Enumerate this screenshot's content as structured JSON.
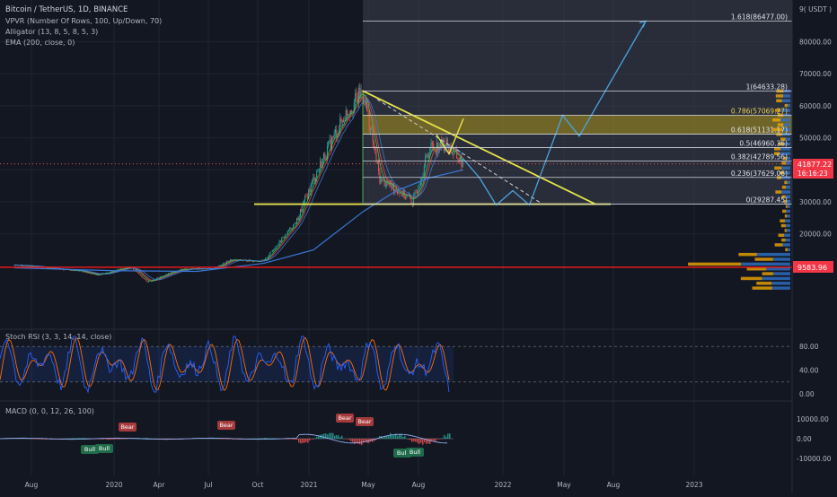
{
  "header": {
    "symbol": "Bitcoin / TetherUS, 1D, BINANCE",
    "indicators": [
      "VPVR (Number Of Rows, 100, Up/Down, 70)",
      "Alligator (13, 8, 5, 8, 5, 3)",
      "EMA (200, close, 0)"
    ],
    "currency": "9( USDT )"
  },
  "colors": {
    "background": "#131722",
    "grid": "#1f2431",
    "axis_text": "#b2b5be",
    "candle_up": "#26a69a",
    "candle_down": "#ef5350",
    "fib_line": "#d1d4dc",
    "fib_band": "#c8aa14",
    "triangle": "#e6e24a",
    "projection": "#4aa3df",
    "support": "#e21b1b",
    "ema": "#3a78d8",
    "volume_up": "#2e72c9",
    "volume_down": "#f0a500",
    "price_badge": "#f23645",
    "stoch_k": "#2962ff",
    "stoch_d": "#ff6d00"
  },
  "price_badges": {
    "current": "41877.22",
    "countdown": "16:16:23",
    "support": "9583.96"
  },
  "chart_data": [
    {
      "type": "line",
      "title": "Bitcoin / TetherUS, 1D, BINANCE",
      "x_ticks": [
        "Aug",
        "2020",
        "Apr",
        "Jul",
        "Oct",
        "2021",
        "May",
        "Aug",
        "2022",
        "May",
        "Aug",
        "2023"
      ],
      "y_ticks": [
        20000,
        30000,
        40000,
        50000,
        60000,
        70000,
        80000
      ],
      "y_tick_labels": [
        "20000.00",
        "30000.00",
        "40000.00",
        "50000.00",
        "60000.00",
        "70000.00",
        "80000.00"
      ],
      "price_path": [
        {
          "t": "2019-07",
          "p": 10400
        },
        {
          "t": "2019-09",
          "p": 9400
        },
        {
          "t": "2019-11",
          "p": 8400
        },
        {
          "t": "2019-12",
          "p": 7200
        },
        {
          "t": "2020-02",
          "p": 9800
        },
        {
          "t": "2020-03",
          "p": 5000
        },
        {
          "t": "2020-05",
          "p": 9000
        },
        {
          "t": "2020-07",
          "p": 9200
        },
        {
          "t": "2020-08",
          "p": 11800
        },
        {
          "t": "2020-10",
          "p": 11500
        },
        {
          "t": "2020-11",
          "p": 17800
        },
        {
          "t": "2020-12",
          "p": 24000
        },
        {
          "t": "2021-01",
          "p": 37000
        },
        {
          "t": "2021-02",
          "p": 48000
        },
        {
          "t": "2021-03",
          "p": 58000
        },
        {
          "t": "2021-04",
          "p": 64633
        },
        {
          "t": "2021-05",
          "p": 37000
        },
        {
          "t": "2021-06",
          "p": 34000
        },
        {
          "t": "2021-07",
          "p": 30000
        },
        {
          "t": "2021-08",
          "p": 47000
        },
        {
          "t": "2021-09",
          "p": 48000
        },
        {
          "t": "2021-10",
          "p": 41877
        }
      ],
      "ema_200": [
        {
          "t": "2019-07",
          "p": 9400
        },
        {
          "t": "2020-01",
          "p": 8500
        },
        {
          "t": "2020-06",
          "p": 8300
        },
        {
          "t": "2020-10",
          "p": 10800
        },
        {
          "t": "2021-01",
          "p": 15000
        },
        {
          "t": "2021-04",
          "p": 27000
        },
        {
          "t": "2021-06",
          "p": 33500
        },
        {
          "t": "2021-08",
          "p": 37500
        },
        {
          "t": "2021-10",
          "p": 40000
        }
      ],
      "fib_levels": [
        {
          "label": "1.618(86477.00)",
          "value": 86477
        },
        {
          "label": "1(64633.28)",
          "value": 64633.28
        },
        {
          "label": "0.786(57069.27)",
          "value": 57069.27
        },
        {
          "label": "0.618(51131.17)",
          "value": 51131.17
        },
        {
          "label": "0.5(46960.36)",
          "value": 46960.36
        },
        {
          "label": "0.382(42789.56)",
          "value": 42789.56
        },
        {
          "label": "0.236(37629.06)",
          "value": 37629.06
        },
        {
          "label": "0(29287.45)",
          "value": 29287.45
        }
      ],
      "support_level": 9583.96,
      "last_price": 41877.22,
      "projection": [
        {
          "t": "2021-10",
          "p": 43500
        },
        {
          "t": "2021-11",
          "p": 37500
        },
        {
          "t": "2021-12",
          "p": 29000
        },
        {
          "t": "2022-01",
          "p": 33500
        },
        {
          "t": "2022-02",
          "p": 29000
        },
        {
          "t": "2022-04",
          "p": 57000
        },
        {
          "t": "2022-05",
          "p": 50500
        },
        {
          "t": "2022-09",
          "p": 86477
        }
      ]
    },
    {
      "type": "line",
      "title": "Stoch RSI (3, 3, 14, 14, close)",
      "y_ticks": [
        0,
        40,
        80
      ],
      "y_tick_labels": [
        "0.00",
        "40.00",
        "80.00"
      ],
      "bands": [
        20,
        80
      ]
    },
    {
      "type": "bar",
      "title": "MACD (0, 0, 12, 26, 100)",
      "y_ticks": [
        10000,
        0,
        -10000
      ],
      "y_tick_labels": [
        "10000.00",
        "0.00",
        "-10000.00"
      ],
      "annotations": [
        "Bear",
        "Bear",
        "Bear",
        "Bear",
        "Bull",
        "Bull",
        "Bull",
        "Bull"
      ]
    }
  ]
}
